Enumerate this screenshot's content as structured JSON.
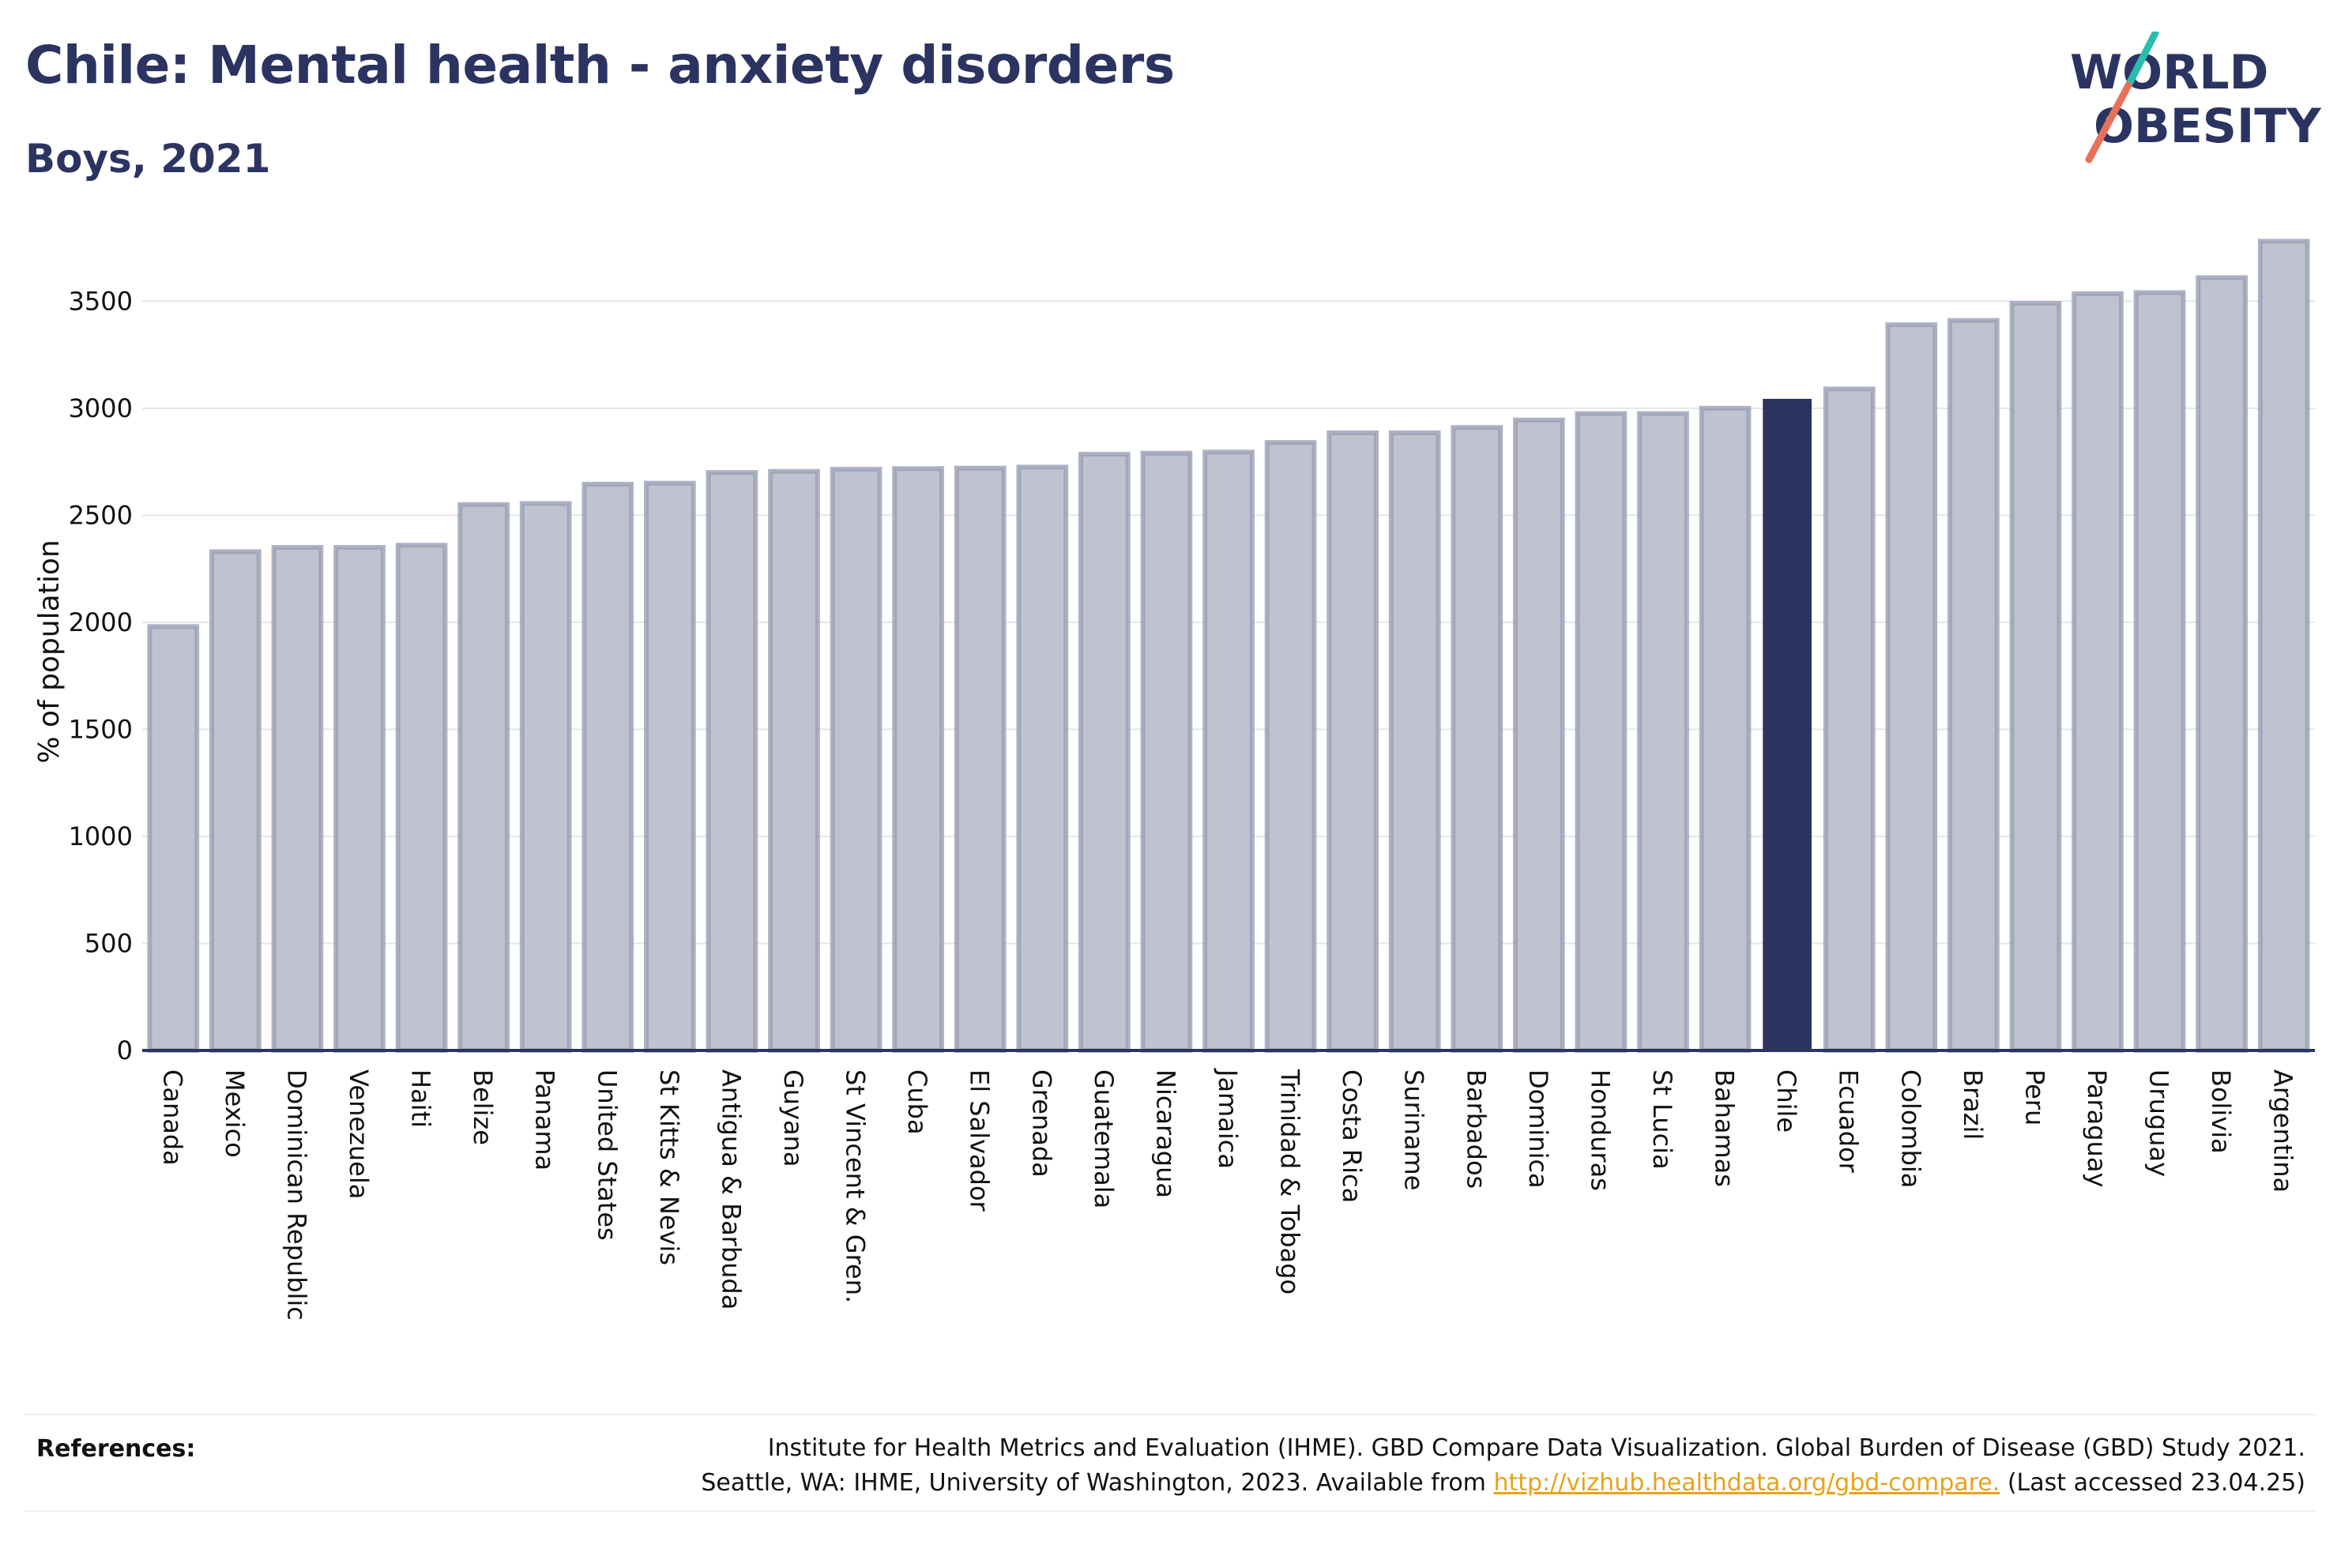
{
  "header": {
    "title": "Chile: Mental health - anxiety disorders",
    "subtitle": "Boys, 2021"
  },
  "logo": {
    "line1": "WORLD",
    "line2": "OBESITY"
  },
  "references": {
    "label": "References:",
    "line1": "Institute for Health Metrics and Evaluation (IHME). GBD Compare Data Visualization. Global Burden of Disease (GBD) Study 2021.",
    "line2_prefix": "Seattle, WA: IHME, University of Washington, 2023. Available from ",
    "link": "http://vizhub.healthdata.org/gbd-compare.",
    "line2_suffix": " (Last accessed 23.04.25)"
  },
  "colors": {
    "bar_default": "#c0c3cf",
    "bar_default_stroke": "#9a9fb5",
    "bar_highlight": "#2b3461",
    "axis": "#2b3461",
    "grid": "#e6e6e6",
    "logo_teal": "#2bbcb0",
    "logo_coral": "#e8705a"
  },
  "chart_data": {
    "type": "bar",
    "title": "Chile: Mental health - anxiety disorders",
    "subtitle": "Boys, 2021",
    "ylabel": "% of population",
    "xlabel": "",
    "ylim": [
      0,
      3800
    ],
    "yticks": [
      0,
      500,
      1000,
      1500,
      2000,
      2500,
      3000,
      3500
    ],
    "grid": true,
    "highlight": "Chile",
    "categories": [
      "Canada",
      "Mexico",
      "Dominican Republic",
      "Venezuela",
      "Haiti",
      "Belize",
      "Panama",
      "United States",
      "St Kitts & Nevis",
      "Antigua & Barbuda",
      "Guyana",
      "St Vincent & Gren.",
      "Cuba",
      "El Salvador",
      "Grenada",
      "Guatemala",
      "Nicaragua",
      "Jamaica",
      "Trinidad & Tobago",
      "Costa Rica",
      "Suriname",
      "Barbados",
      "Dominica",
      "Honduras",
      "St Lucia",
      "Bahamas",
      "Chile",
      "Ecuador",
      "Colombia",
      "Brazil",
      "Peru",
      "Paraguay",
      "Uruguay",
      "Bolivia",
      "Argentina"
    ],
    "values": [
      1980,
      2330,
      2350,
      2350,
      2360,
      2550,
      2555,
      2645,
      2650,
      2700,
      2705,
      2715,
      2718,
      2720,
      2725,
      2785,
      2790,
      2795,
      2840,
      2885,
      2885,
      2910,
      2945,
      2975,
      2975,
      3000,
      3040,
      3090,
      3390,
      3410,
      3490,
      3535,
      3540,
      3610,
      3780
    ]
  }
}
